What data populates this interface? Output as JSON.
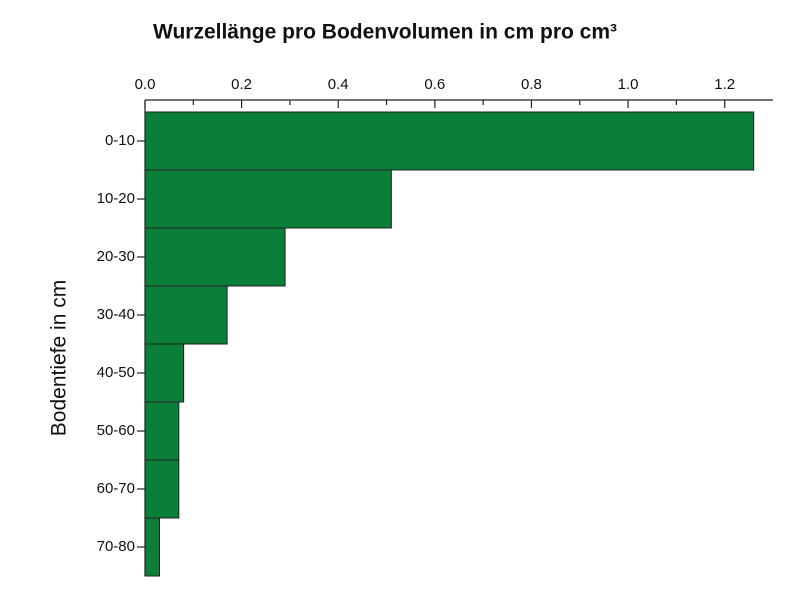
{
  "chart_data": {
    "type": "barh",
    "title": "Wurzellänge pro Bodenvolumen in cm pro cm³",
    "ylabel": "Bodentiefe in cm",
    "categories": [
      "0-10",
      "10-20",
      "20-30",
      "30-40",
      "40-50",
      "50-60",
      "60-70",
      "70-80"
    ],
    "values": [
      1.26,
      0.51,
      0.29,
      0.17,
      0.08,
      0.07,
      0.07,
      0.03
    ],
    "color": "#0a7f3a",
    "xlim": [
      0,
      1.3
    ],
    "xticks": [
      {
        "value": 0,
        "label": "0.0"
      },
      0.2,
      0.4,
      0.6,
      0.8,
      {
        "value": 1,
        "label": "1.0"
      },
      1.2
    ],
    "xminorticks": [
      0.1,
      0.3,
      0.5,
      0.7,
      0.9,
      1.1
    ],
    "grid": false
  }
}
